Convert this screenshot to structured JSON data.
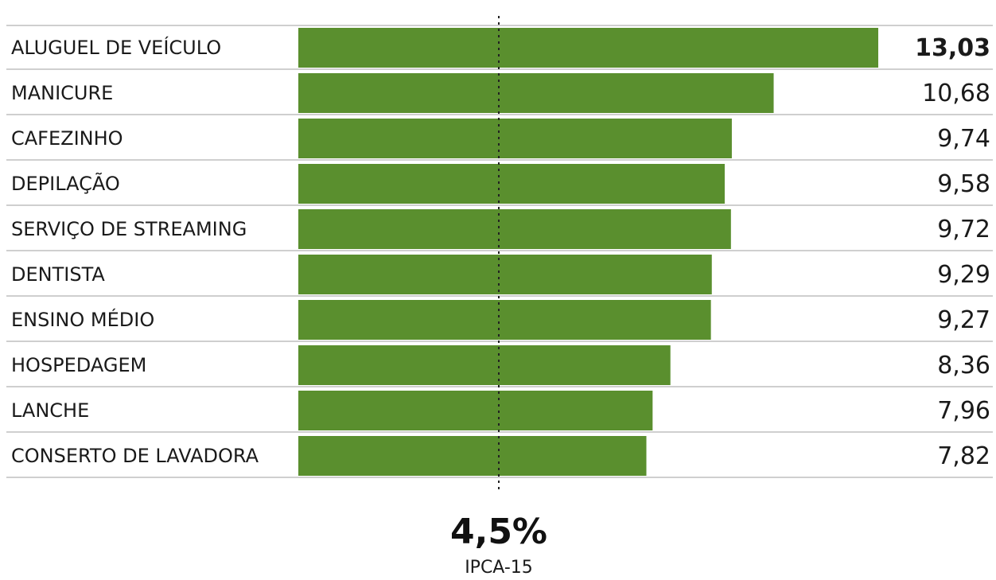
{
  "chart_data": {
    "type": "bar",
    "orientation": "horizontal",
    "categories": [
      "ALUGUEL DE VEÍCULO",
      "MANICURE",
      "CAFEZINHO",
      "DEPILAÇÃO",
      "SERVIÇO DE STREAMING",
      "DENTISTA",
      "ENSINO MÉDIO",
      "HOSPEDAGEM",
      "LANCHE",
      "CONSERTO DE LAVADORA"
    ],
    "values": [
      13.03,
      10.68,
      9.74,
      9.58,
      9.72,
      9.29,
      9.27,
      8.36,
      7.96,
      7.82
    ],
    "value_labels": [
      "13,03",
      "10,68",
      "9,74",
      "9,58",
      "9,72",
      "9,29",
      "9,27",
      "8,36",
      "7,96",
      "7,82"
    ],
    "highlighted_index": 0,
    "bar_color": "#5a8f2e",
    "reference_line": {
      "value": 4.5,
      "value_label": "4,5%",
      "label": "IPCA-15",
      "style": "dotted"
    },
    "xlim": [
      0,
      13.03
    ],
    "grid": false,
    "title": "",
    "xlabel": "",
    "ylabel": ""
  }
}
